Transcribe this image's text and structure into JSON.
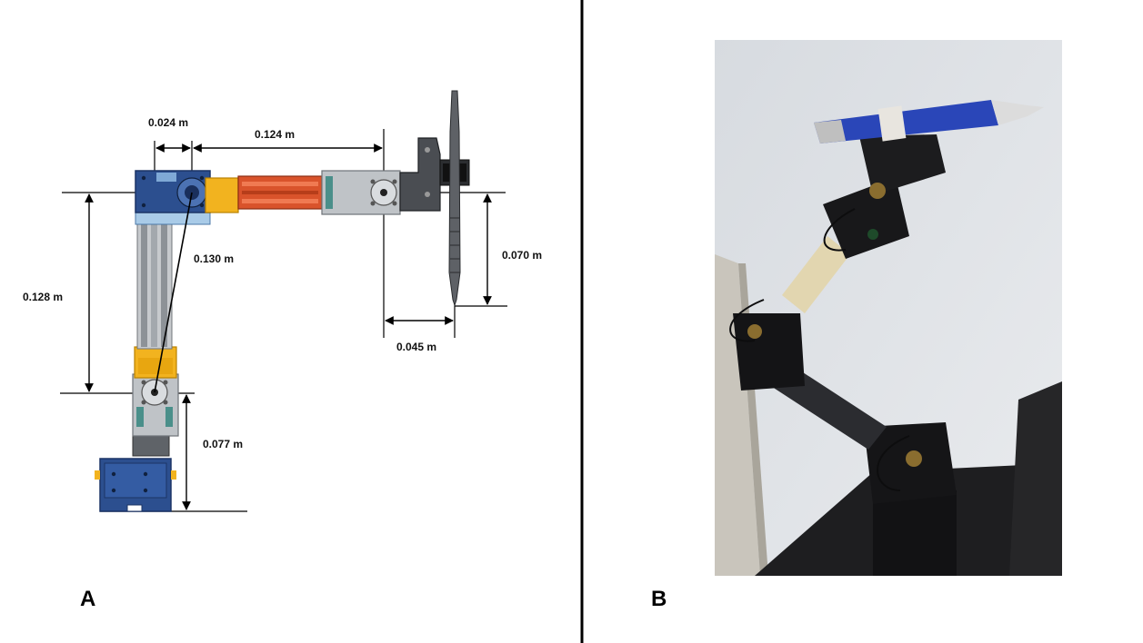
{
  "panels": [
    {
      "letter": "A"
    },
    {
      "letter": "B"
    }
  ],
  "dimensions": {
    "upper_offset": "0.024 m",
    "forearm_length": "0.124 m",
    "diagonal": "0.130 m",
    "upper_arm_height": "0.128 m",
    "pen_drop": "0.070 m",
    "pen_offset": "0.045 m",
    "base_height": "0.077 m"
  },
  "colors": {
    "blue_block": "#2c4f8f",
    "yellow_part": "#f2b31f",
    "orange_rod": "#e0542a",
    "grey_servo": "#bfc3c7",
    "dark_part": "#3a3a3a",
    "photo_background": "#dde0e5",
    "photo_pen_blue": "#2a46b8"
  }
}
